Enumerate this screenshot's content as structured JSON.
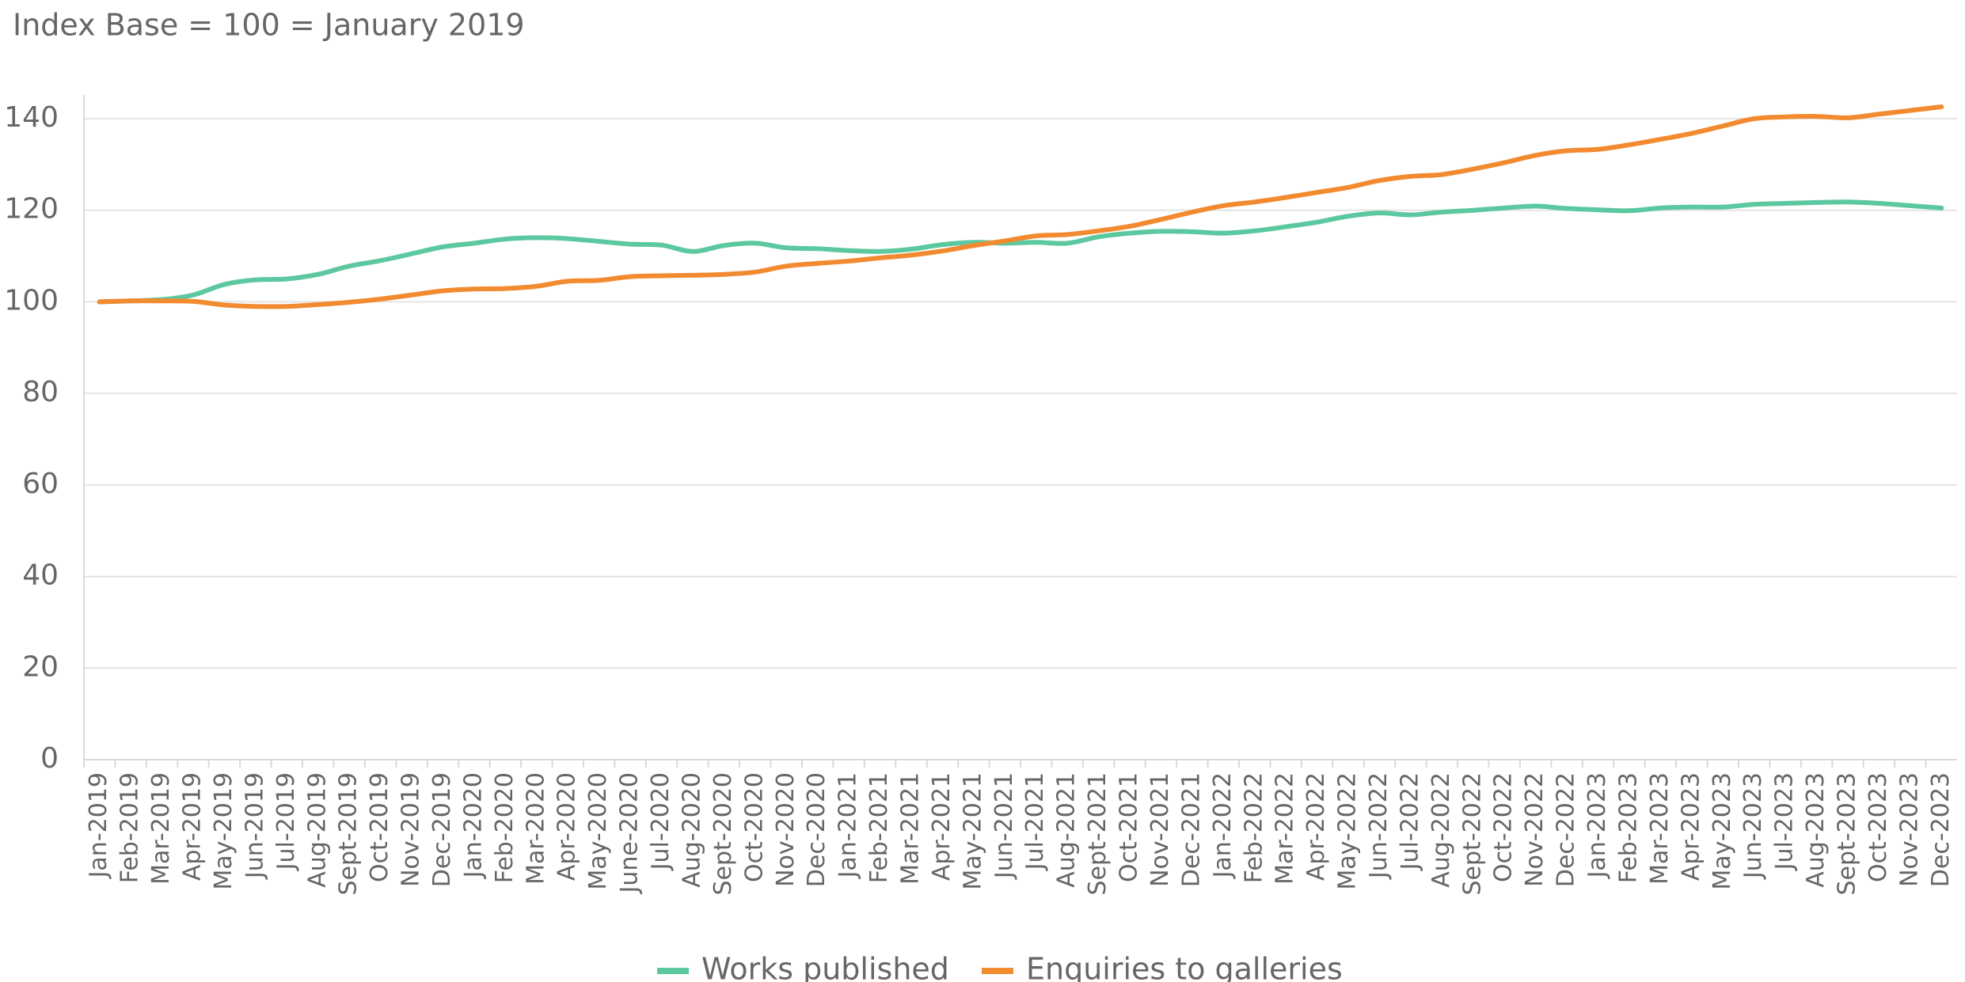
{
  "chart_data": {
    "type": "line",
    "title": "Index Base = 100 = January 2019",
    "categories": [
      "Jan-2019",
      "Feb-2019",
      "Mar-2019",
      "Apr-2019",
      "May-2019",
      "Jun-2019",
      "Jul-2019",
      "Aug-2019",
      "Sept-2019",
      "Oct-2019",
      "Nov-2019",
      "Dec-2019",
      "Jan-2020",
      "Feb-2020",
      "Mar-2020",
      "Apr-2020",
      "May-2020",
      "June-2020",
      "Jul-2020",
      "Aug-2020",
      "Sept-2020",
      "Oct-2020",
      "Nov-2020",
      "Dec-2020",
      "Jan-2021",
      "Feb-2021",
      "Mar-2021",
      "Apr-2021",
      "May-2021",
      "Jun-2021",
      "Jul-2021",
      "Aug-2021",
      "Sept-2021",
      "Oct-2021",
      "Nov-2021",
      "Dec-2021",
      "Jan-2022",
      "Feb-2022",
      "Mar-2022",
      "Apr-2022",
      "May-2022",
      "Jun-2022",
      "Jul-2022",
      "Aug-2022",
      "Sept-2022",
      "Oct-2022",
      "Nov-2022",
      "Dec-2022",
      "Jan-2023",
      "Feb-2023",
      "Mar-2023",
      "Apr-2023",
      "May-2023",
      "Jun-2023",
      "Jul-2023",
      "Aug-2023",
      "Sept-2023",
      "Oct-2023",
      "Nov-2023",
      "Dec-2023"
    ],
    "series": [
      {
        "name": "Works published",
        "color": "#5cc8a0",
        "values": [
          100,
          100.2,
          100.5,
          101.5,
          103.8,
          104.8,
          105,
          106,
          107.8,
          109,
          110.5,
          112,
          112.8,
          113.7,
          114,
          113.8,
          113.2,
          112.6,
          112.4,
          111,
          112.3,
          112.8,
          111.8,
          111.6,
          111.2,
          111,
          111.5,
          112.5,
          113,
          112.8,
          113,
          112.8,
          114.2,
          115,
          115.4,
          115.3,
          115,
          115.5,
          116.4,
          117.4,
          118.7,
          119.4,
          119,
          119.6,
          120,
          120.5,
          120.9,
          120.4,
          120.1,
          119.9,
          120.5,
          120.7,
          120.7,
          121.3,
          121.5,
          121.7,
          121.8,
          121.5,
          121,
          120.5
        ]
      },
      {
        "name": "Enquiries to galleries",
        "color": "#f28a30",
        "values": [
          100,
          100.2,
          100.2,
          100.1,
          99.3,
          99,
          99,
          99.4,
          99.9,
          100.6,
          101.5,
          102.4,
          102.8,
          102.9,
          103.4,
          104.5,
          104.7,
          105.5,
          105.7,
          105.8,
          106,
          106.5,
          107.8,
          108.4,
          108.9,
          109.6,
          110.2,
          111.1,
          112.3,
          113.3,
          114.4,
          114.7,
          115.5,
          116.5,
          118,
          119.6,
          121,
          121.8,
          122.8,
          123.9,
          125,
          126.5,
          127.4,
          127.8,
          129,
          130.4,
          132,
          133,
          133.3,
          134.3,
          135.5,
          136.8,
          138.4,
          140,
          140.4,
          140.5,
          140.2,
          141,
          141.8,
          142.6
        ]
      }
    ],
    "ylim": [
      0,
      140
    ],
    "yticks": [
      0,
      20,
      40,
      60,
      80,
      100,
      120,
      140
    ],
    "grid": true
  }
}
